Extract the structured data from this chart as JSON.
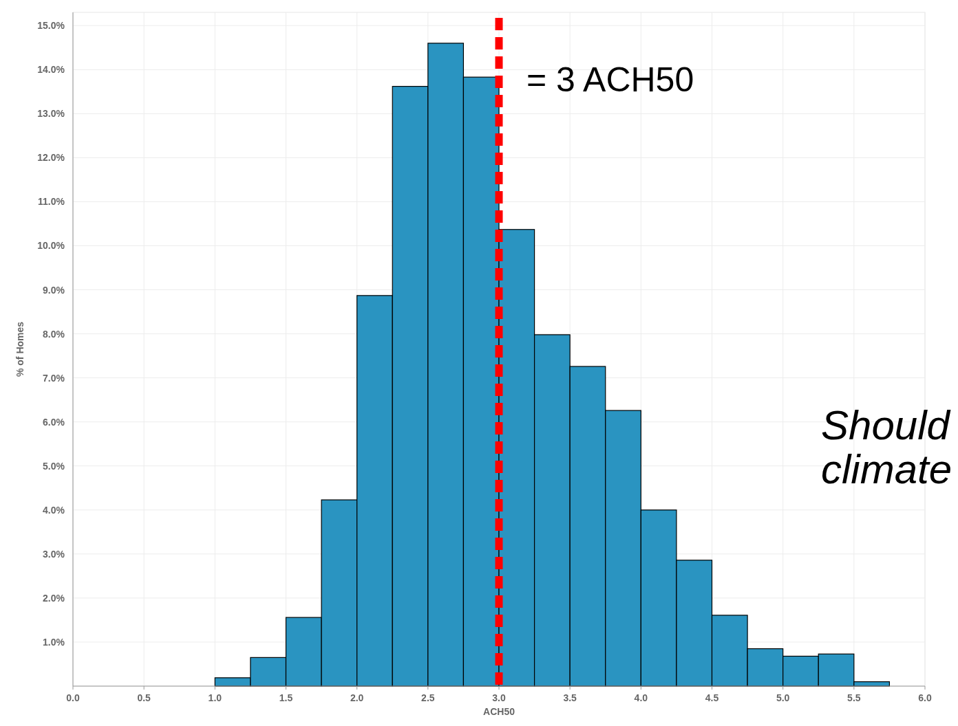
{
  "chart_data": {
    "type": "histogram",
    "xlabel": "ACH50",
    "ylabel": "% of Homes",
    "bins": [
      1.0,
      1.25,
      1.5,
      1.75,
      2.0,
      2.25,
      2.5,
      2.75,
      3.0,
      3.25,
      3.5,
      3.75,
      4.0,
      4.25,
      4.5,
      4.75,
      5.0,
      5.25,
      5.5,
      5.75
    ],
    "values": [
      0.19,
      0.65,
      1.56,
      4.23,
      8.87,
      13.62,
      14.6,
      13.83,
      10.37,
      7.98,
      7.26,
      6.26,
      4.0,
      2.86,
      1.61,
      0.85,
      0.68,
      0.73,
      0.1
    ],
    "color": "#2a94c1",
    "xlim": [
      0,
      6
    ],
    "xticks": [
      {
        "value": 0,
        "label": "0.0"
      },
      {
        "value": 0.5,
        "label": "0.5"
      },
      {
        "value": 1,
        "label": "1.0"
      },
      {
        "value": 1.5,
        "label": "1.5"
      },
      {
        "value": 2,
        "label": "2.0"
      },
      {
        "value": 2.5,
        "label": "2.5"
      },
      {
        "value": 3,
        "label": "3.0"
      },
      {
        "value": 3.5,
        "label": "3.5"
      },
      {
        "value": 4,
        "label": "4.0"
      },
      {
        "value": 4.5,
        "label": "4.5"
      },
      {
        "value": 5,
        "label": "5.0"
      },
      {
        "value": 5.5,
        "label": "5.5"
      },
      {
        "value": 6,
        "label": "6.0"
      }
    ],
    "ylim": [
      0,
      15.3
    ],
    "yticks": [
      {
        "value": 1,
        "label": "1.0%"
      },
      {
        "value": 2,
        "label": "2.0%"
      },
      {
        "value": 3,
        "label": "3.0%"
      },
      {
        "value": 4,
        "label": "4.0%"
      },
      {
        "value": 5,
        "label": "5.0%"
      },
      {
        "value": 6,
        "label": "6.0%"
      },
      {
        "value": 7,
        "label": "7.0%"
      },
      {
        "value": 8,
        "label": "8.0%"
      },
      {
        "value": 9,
        "label": "9.0%"
      },
      {
        "value": 10,
        "label": "10.0%"
      },
      {
        "value": 11,
        "label": "11.0%"
      },
      {
        "value": 12,
        "label": "12.0%"
      },
      {
        "value": 13,
        "label": "13.0%"
      },
      {
        "value": 14,
        "label": "14.0%"
      },
      {
        "value": 15,
        "label": "15.0%"
      }
    ],
    "grid": true,
    "ref_lines": [
      {
        "axis": "x",
        "value": 3,
        "label": "= 3 ACH50",
        "color": "#ff0000",
        "line_style": "dashed"
      }
    ],
    "annotations": [
      "Should",
      "climate"
    ]
  }
}
